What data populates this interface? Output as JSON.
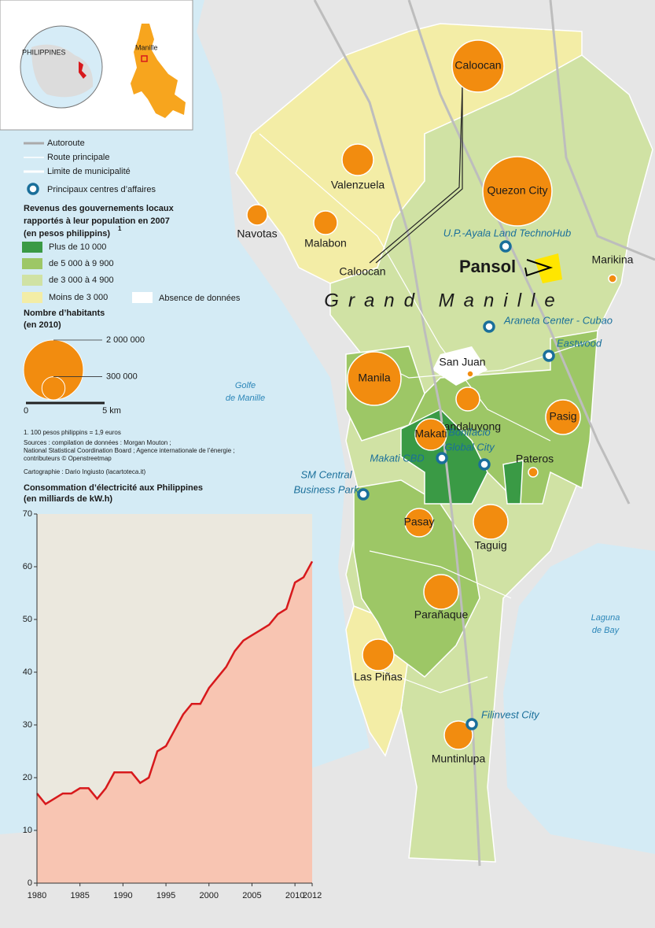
{
  "inset": {
    "country_label": "PHILIPPINES",
    "city_label": "Manille"
  },
  "legend": {
    "roads": [
      "Autoroute",
      "Route principale",
      "Limite de municipalité"
    ],
    "business": "Principaux centres d’affaires",
    "revenue_title": [
      "Revenus des gouvernements locaux",
      "rapportés à leur population en 2007",
      "(en pesos philippins)"
    ],
    "revenue_note_ref": "1",
    "revenue_classes": [
      {
        "label": "Plus de 10 000",
        "color": "#3a9a45"
      },
      {
        "label": "de 5 000 à 9 900",
        "color": "#9dc766"
      },
      {
        "label": "de 3 000 à 4 900",
        "color": "#d0e2a4"
      },
      {
        "label": "Moins de 3 000",
        "color": "#f3eda6"
      }
    ],
    "no_data": "Absence de données",
    "population_title": [
      "Nombre d’habitants",
      "(en 2010)"
    ],
    "population_scale": [
      {
        "value": 2000000,
        "label": "2 000 000"
      },
      {
        "value": 300000,
        "label": "300 000"
      }
    ],
    "scale_bar": [
      "0",
      "5 km"
    ]
  },
  "notes": {
    "footnote": "1. 100 pesos philippins = 1,9 euros",
    "sources": [
      "Sources : compilation de données : Morgan Mouton ;",
      "National Statistical Coordination Board ; Agence internationale de l’énergie ;",
      "contributeurs © Openstreetmap"
    ],
    "cartography": "Cartographie : Dario Ingiusto (lacartoteca.it)"
  },
  "map": {
    "title": "Grand Manille",
    "water_labels": [
      [
        "Golfe",
        "de Manille"
      ],
      [
        "Laguna",
        "de Bay"
      ]
    ],
    "municipalities": [
      {
        "name": "Caloocan",
        "population": 1510000
      },
      {
        "name": "Quezon City",
        "population": 2680000
      },
      {
        "name": "Valenzuela",
        "population": 554000
      },
      {
        "name": "Navotas",
        "population": 234000
      },
      {
        "name": "Malabon",
        "population": 312000
      },
      {
        "name": "Manila",
        "population": 1600000
      },
      {
        "name": "San Juan",
        "population": 22000
      },
      {
        "name": "Mandaluyong",
        "population": 312000
      },
      {
        "name": "Makati",
        "population": 554000
      },
      {
        "name": "Pasig",
        "population": 670000
      },
      {
        "name": "Pateros",
        "population": 50000
      },
      {
        "name": "Pasay",
        "population": 449000
      },
      {
        "name": "Taguig",
        "population": 670000
      },
      {
        "name": "Parañaque",
        "population": 670000
      },
      {
        "name": "Las Piñas",
        "population": 554000
      },
      {
        "name": "Muntinlupa",
        "population": 449000
      },
      {
        "name": "Marikina",
        "population": 35000
      }
    ],
    "caloocan_south_label": "Caloocan",
    "pansol_label": "Pansol",
    "business_centers": [
      [
        "U.P.-Ayala Land TechnoHub"
      ],
      [
        "Araneta Center - Cubao"
      ],
      [
        "Eastwood"
      ],
      [
        "Bonifacio",
        "Global City"
      ],
      [
        "Makati CBD"
      ],
      [
        "SM Central",
        "Business Park"
      ],
      [
        "Filinvest City"
      ]
    ]
  },
  "chart_data": {
    "type": "area",
    "title": "Consommation d’électricité aux Philippines",
    "subtitle": "(en milliards de kW.h)",
    "x": [
      1980,
      1981,
      1982,
      1983,
      1984,
      1985,
      1986,
      1987,
      1988,
      1989,
      1990,
      1991,
      1992,
      1993,
      1994,
      1995,
      1996,
      1997,
      1998,
      1999,
      2000,
      2001,
      2002,
      2003,
      2004,
      2005,
      2006,
      2007,
      2008,
      2009,
      2010,
      2011,
      2012
    ],
    "values": [
      17,
      15,
      16,
      17,
      17,
      18,
      18,
      16,
      18,
      21,
      21,
      21,
      19,
      20,
      25,
      26,
      29,
      32,
      34,
      34,
      37,
      39,
      41,
      44,
      46,
      47,
      48,
      49,
      51,
      52,
      57,
      58,
      61
    ],
    "xlim": [
      1980,
      2012
    ],
    "xticks": [
      1980,
      1985,
      1990,
      1995,
      2000,
      2005,
      2010,
      2012
    ],
    "ylim": [
      0,
      70
    ],
    "yticks": [
      0,
      10,
      20,
      30,
      40,
      50,
      60,
      70
    ],
    "color": "#d7191c",
    "fill": "#f8c5b2",
    "background": "#ebe8de"
  }
}
